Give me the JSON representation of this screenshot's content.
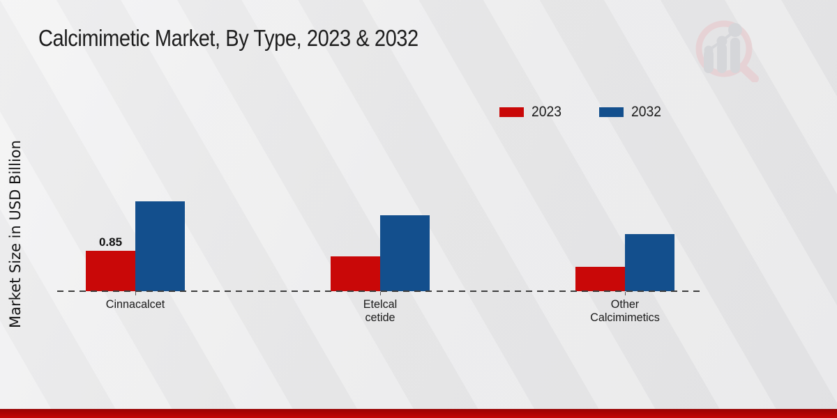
{
  "title": "Calcimimetic Market, By Type, 2023 & 2032",
  "ylabel": "Market Size in USD Billion",
  "legend": {
    "position": "top-right",
    "items": [
      {
        "label": "2023",
        "color": "#c90808"
      },
      {
        "label": "2032",
        "color": "#134f8d"
      }
    ]
  },
  "colors": {
    "series_2023": "#c90808",
    "series_2032": "#134f8d",
    "baseline": "#3d3d3d",
    "footer_bar": "#b70404",
    "background": "#eaeaeb"
  },
  "brand": {
    "logo_icon": "bar-chart-magnifier-watermark-icon"
  },
  "chart_data": {
    "type": "bar",
    "title": "Calcimimetic Market, By Type, 2023 & 2032",
    "xlabel": "",
    "ylabel": "Market Size in USD Billion",
    "categories": [
      "Cinnacalcet",
      "Etelcalcetide",
      "Other Calcimimetics"
    ],
    "tick_label_lines": [
      [
        "Cinnacalcet"
      ],
      [
        "Etelcal",
        "cetide"
      ],
      [
        "Other",
        "Calcimimetics"
      ]
    ],
    "series": [
      {
        "name": "2023",
        "color": "#c90808",
        "values": [
          0.85,
          0.73,
          0.52
        ]
      },
      {
        "name": "2032",
        "color": "#134f8d",
        "values": [
          1.9,
          1.61,
          1.2
        ]
      }
    ],
    "ylim": [
      0,
      2.5
    ],
    "grid": false,
    "baseline_style": "dashed",
    "legend_position": "top-right",
    "value_labels": [
      {
        "series_index": 0,
        "category_index": 0,
        "text": "0.85"
      }
    ]
  }
}
